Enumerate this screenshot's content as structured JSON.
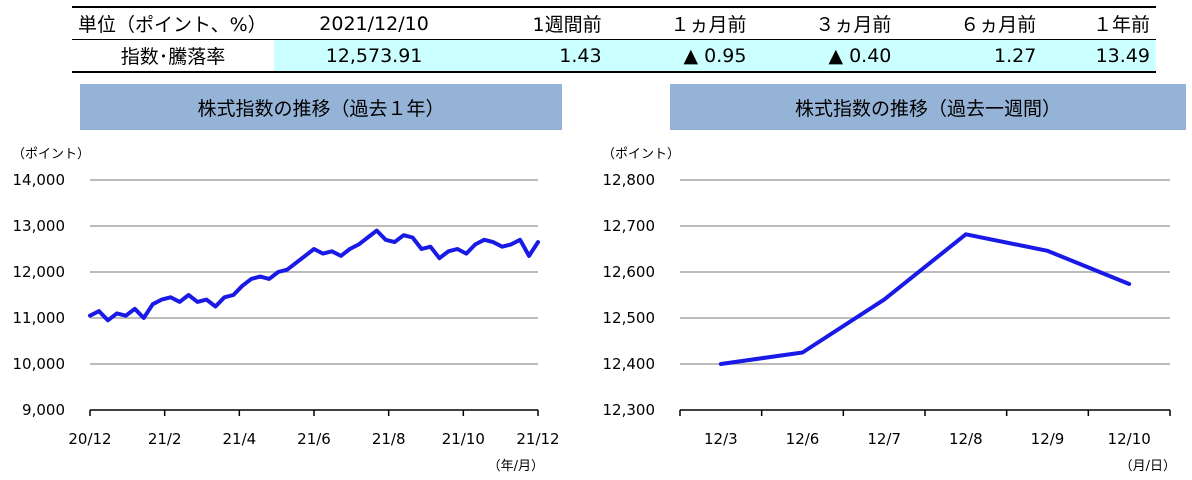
{
  "table": {
    "header": [
      "単位（ポイント、%）",
      "2021/12/10",
      "1週間前",
      "１ヵ月前",
      "３ヵ月前",
      "６ヵ月前",
      "１年前"
    ],
    "row_label": "指数･騰落率",
    "values": [
      "12,573.91",
      "1.43",
      "▲ 0.95",
      "▲ 0.40",
      "1.27",
      "13.49"
    ]
  },
  "colors": {
    "line": "#1a1ae6",
    "title_bg": "#95b3d7",
    "highlight": "#ccffff",
    "grid": "#a6a6a6"
  },
  "chart_data": [
    {
      "type": "line",
      "title": "株式指数の推移（過去１年）",
      "y_unit": "（ポイント）",
      "x_unit": "（年/月）",
      "ylim": [
        9000,
        14000
      ],
      "y_ticks": [
        "9,000",
        "10,000",
        "11,000",
        "12,000",
        "13,000",
        "14,000"
      ],
      "x_ticks": [
        "20/12",
        "21/2",
        "21/4",
        "21/6",
        "21/8",
        "21/10",
        "21/12"
      ],
      "grid": true,
      "x": [
        0,
        0.02,
        0.04,
        0.06,
        0.08,
        0.1,
        0.12,
        0.14,
        0.16,
        0.18,
        0.2,
        0.22,
        0.24,
        0.26,
        0.28,
        0.3,
        0.32,
        0.34,
        0.36,
        0.38,
        0.4,
        0.42,
        0.44,
        0.46,
        0.48,
        0.5,
        0.52,
        0.54,
        0.56,
        0.58,
        0.6,
        0.62,
        0.64,
        0.66,
        0.68,
        0.7,
        0.72,
        0.74,
        0.76,
        0.78,
        0.8,
        0.82,
        0.84,
        0.86,
        0.88,
        0.9,
        0.92,
        0.94,
        0.96,
        0.98,
        1.0
      ],
      "values": [
        11050,
        11150,
        10950,
        11100,
        11050,
        11200,
        11000,
        11300,
        11400,
        11450,
        11350,
        11500,
        11350,
        11400,
        11250,
        11450,
        11500,
        11700,
        11850,
        11900,
        11850,
        12000,
        12050,
        12200,
        12350,
        12500,
        12400,
        12450,
        12350,
        12500,
        12600,
        12750,
        12900,
        12700,
        12650,
        12800,
        12750,
        12500,
        12550,
        12300,
        12450,
        12500,
        12400,
        12600,
        12700,
        12650,
        12550,
        12600,
        12700,
        12350,
        12650
      ]
    },
    {
      "type": "line",
      "title": "株式指数の推移（過去一週間）",
      "y_unit": "（ポイント）",
      "x_unit": "（月/日）",
      "ylim": [
        12300,
        12800
      ],
      "y_ticks": [
        "12,300",
        "12,400",
        "12,500",
        "12,600",
        "12,700",
        "12,800"
      ],
      "x_ticks": [
        "12/3",
        "12/6",
        "12/7",
        "12/8",
        "12/9",
        "12/10"
      ],
      "grid": true,
      "categories": [
        "12/3",
        "12/6",
        "12/7",
        "12/8",
        "12/9",
        "12/10"
      ],
      "values": [
        12400,
        12425,
        12540,
        12682,
        12646,
        12574
      ]
    }
  ]
}
